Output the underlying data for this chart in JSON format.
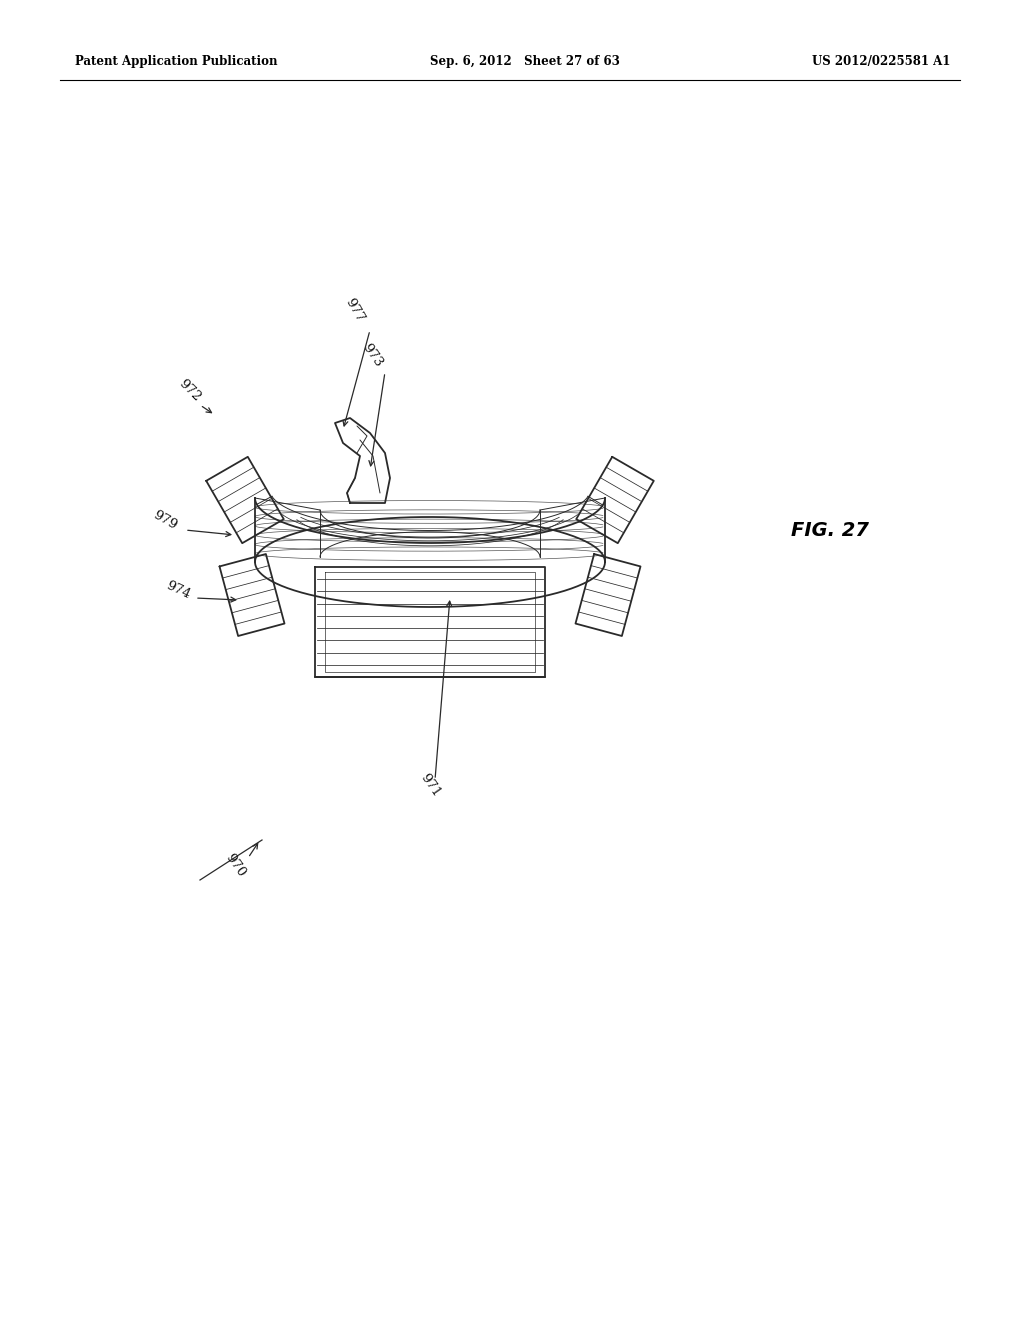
{
  "background_color": "#ffffff",
  "header_left": "Patent Application Publication",
  "header_center": "Sep. 6, 2012   Sheet 27 of 63",
  "header_right": "US 2012/0225581 A1",
  "fig_label": "FIG. 27",
  "line_color": "#2a2a2a",
  "lw_main": 1.3,
  "lw_thin": 0.7,
  "lw_stripe": 0.55
}
